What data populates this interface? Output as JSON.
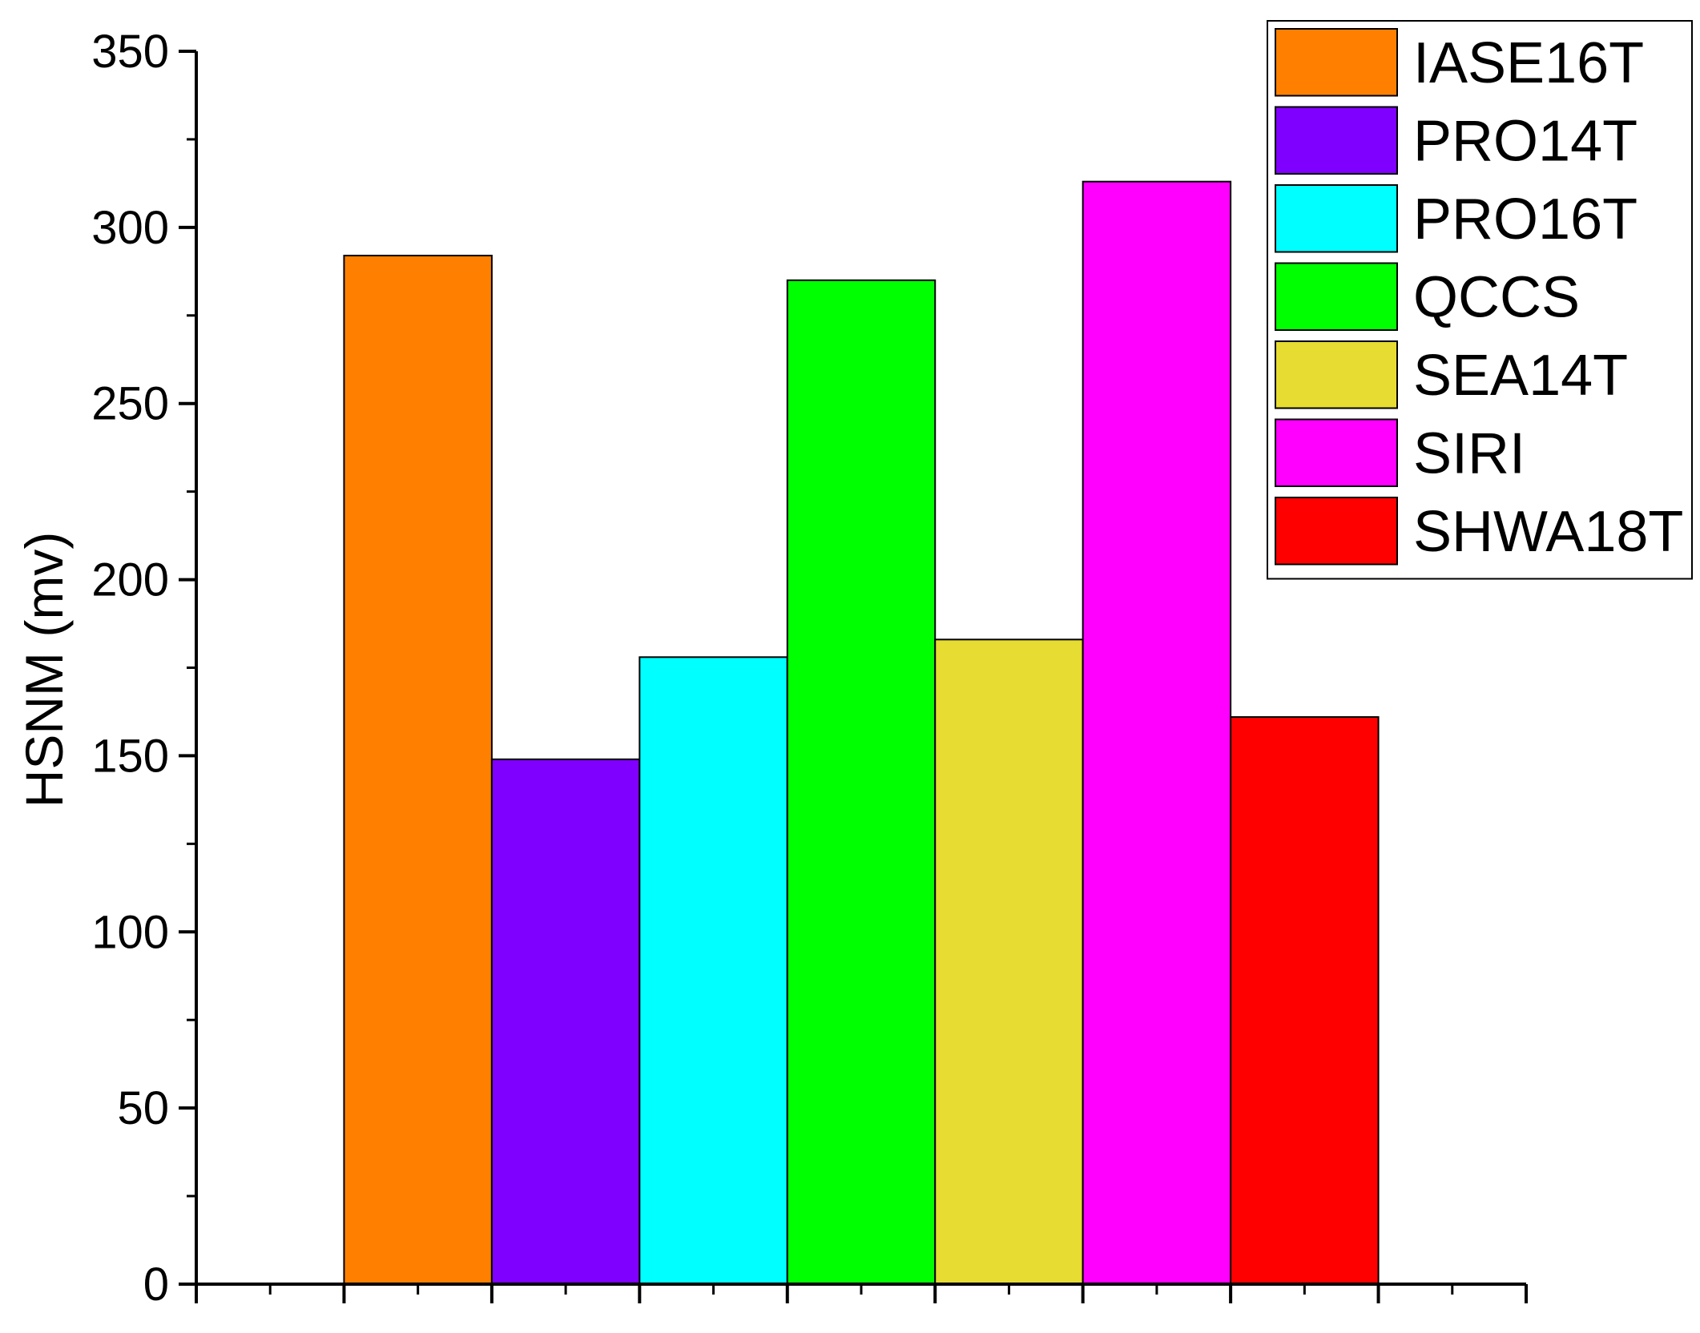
{
  "chart_data": {
    "type": "bar",
    "categories": [
      "IASE16T",
      "PRO14T",
      "PRO16T",
      "QCCS",
      "SEA14T",
      "SIRI",
      "SHWA18T"
    ],
    "values": [
      292,
      149,
      178,
      285,
      183,
      313,
      161
    ],
    "colors": [
      "#ff8000",
      "#8000ff",
      "#00ffff",
      "#00ff00",
      "#e6dc32",
      "#ff00ff",
      "#ff0000"
    ],
    "ylabel": "HSNM (mv)",
    "xlabel": "",
    "ylim": [
      0,
      350
    ],
    "yticks": [
      0,
      50,
      100,
      150,
      200,
      250,
      300,
      350
    ],
    "legend": {
      "position": "top-right",
      "entries": [
        "IASE16T",
        "PRO14T",
        "PRO16T",
        "QCCS",
        "SEA14T",
        "SIRI",
        "SHWA18T"
      ]
    },
    "grid": false
  }
}
